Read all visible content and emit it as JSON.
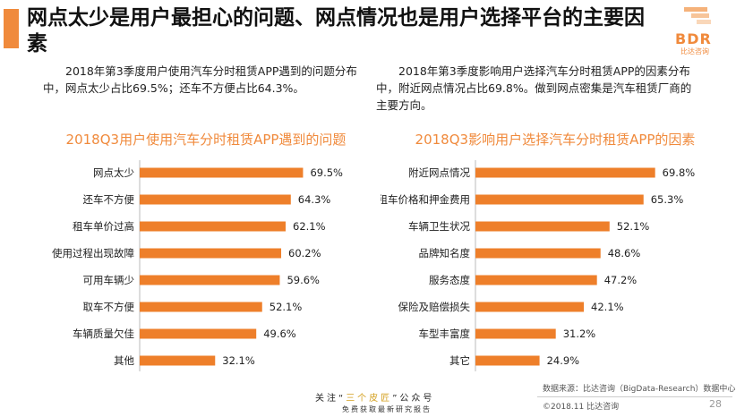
{
  "title": "网点太少是用户最担心的问题、网点情况也是用户选择平台的主要因素",
  "logo": {
    "text": "BDR",
    "sub": "比达咨询"
  },
  "desc_left": "2018年第3季度用户使用汽车分时租赁APP遇到的问题分布中，网点太少占比69.5%；还车不方便占比64.3%。",
  "desc_right": "2018年第3季度影响用户选择汽车分时租赁APP的因素分布中，附近网点情况占比69.8%。做到网点密集是汽车租赁厂商的主要方向。",
  "footer": {
    "source": "数据来源：比达咨询（BigData-Research）数据中心",
    "copyright": "©2018.11  比达咨询",
    "page": "28",
    "follow_prefix": "关注“",
    "follow_highlight": "三个皮匠",
    "follow_suffix": "”公众号",
    "follow_sub": "免费获取最新研究报告"
  },
  "colors": {
    "accent": "#f08a3c",
    "bar": "#ee7f2a"
  },
  "chart_data": [
    {
      "type": "bar",
      "orientation": "horizontal",
      "title": "2018Q3用户使用汽车分时租赁APP遇到的问题",
      "categories": [
        "网点太少",
        "还车不方便",
        "租车单价过高",
        "使用过程出现故障",
        "可用车辆少",
        "取车不方便",
        "车辆质量欠佳",
        "其他"
      ],
      "values": [
        69.5,
        64.3,
        62.1,
        60.2,
        59.6,
        52.1,
        49.6,
        32.1
      ],
      "value_labels": [
        "69.5%",
        "64.3%",
        "62.1%",
        "60.2%",
        "59.6%",
        "52.1%",
        "49.6%",
        "32.1%"
      ],
      "xlim": [
        0,
        80
      ],
      "grid": false
    },
    {
      "type": "bar",
      "orientation": "horizontal",
      "title": "2018Q3影响用户选择汽车分时租赁APP的因素",
      "categories": [
        "附近网点情况",
        "租车价格和押金费用",
        "车辆卫生状况",
        "品牌知名度",
        "服务态度",
        "保险及赔偿损失",
        "车型丰富度",
        "其它"
      ],
      "values": [
        69.8,
        65.3,
        52.1,
        48.6,
        47.2,
        42.1,
        31.2,
        24.9
      ],
      "value_labels": [
        "69.8%",
        "65.3%",
        "52.1%",
        "48.6%",
        "47.2%",
        "42.1%",
        "31.2%",
        "24.9%"
      ],
      "xlim": [
        0,
        80
      ],
      "grid": false
    }
  ]
}
